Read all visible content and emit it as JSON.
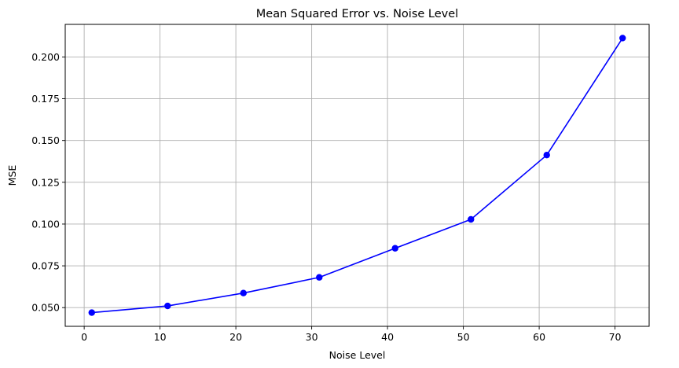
{
  "chart_data": {
    "type": "line",
    "title": "Mean Squared Error vs. Noise Level",
    "xlabel": "Noise Level",
    "ylabel": "MSE",
    "x": [
      1,
      11,
      21,
      31,
      41,
      51,
      61,
      71
    ],
    "series": [
      {
        "values": [
          0.047,
          0.051,
          0.0587,
          0.0681,
          0.0855,
          0.1028,
          0.1413,
          0.2113
        ],
        "color": "#0000ff",
        "marker": "circle"
      }
    ],
    "xticks": [
      0,
      10,
      20,
      30,
      40,
      50,
      60,
      70
    ],
    "xtick_labels": [
      "0",
      "10",
      "20",
      "30",
      "40",
      "50",
      "60",
      "70"
    ],
    "yticks": [
      0.05,
      0.075,
      0.1,
      0.125,
      0.15,
      0.175,
      0.2
    ],
    "ytick_labels": [
      "0.050",
      "0.075",
      "0.100",
      "0.125",
      "0.150",
      "0.175",
      "0.200"
    ],
    "xlim": [
      -2.5,
      74.5
    ],
    "ylim": [
      0.0388,
      0.2195
    ],
    "grid": true,
    "grid_color": "#b0b0b0"
  }
}
